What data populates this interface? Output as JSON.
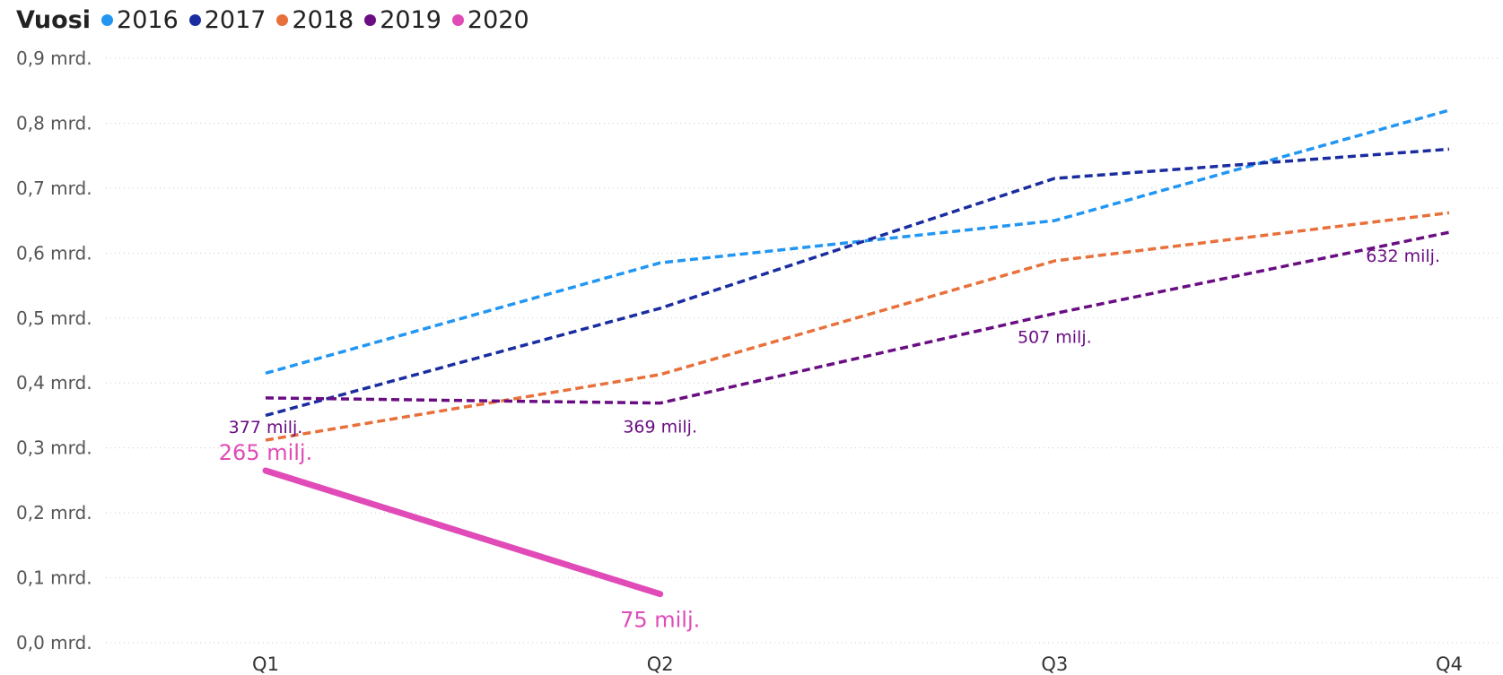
{
  "chart_data": {
    "type": "line",
    "legend_title": "Vuosi",
    "legend_position": "top-left",
    "categories": [
      "Q1",
      "Q2",
      "Q3",
      "Q4"
    ],
    "ylim": [
      0,
      0.9
    ],
    "y_ticks": [
      {
        "value": 0.0,
        "label": "0,0 mrd."
      },
      {
        "value": 0.1,
        "label": "0,1 mrd."
      },
      {
        "value": 0.2,
        "label": "0,2 mrd."
      },
      {
        "value": 0.3,
        "label": "0,3 mrd."
      },
      {
        "value": 0.4,
        "label": "0,4 mrd."
      },
      {
        "value": 0.5,
        "label": "0,5 mrd."
      },
      {
        "value": 0.6,
        "label": "0,6 mrd."
      },
      {
        "value": 0.7,
        "label": "0,7 mrd."
      },
      {
        "value": 0.8,
        "label": "0,8 mrd."
      },
      {
        "value": 0.9,
        "label": "0,9 mrd."
      }
    ],
    "grid": true,
    "series": [
      {
        "name": "2016",
        "color": "#2196F3",
        "style": "dashed",
        "values": [
          0.415,
          0.585,
          0.65,
          0.82
        ]
      },
      {
        "name": "2017",
        "color": "#1A2DA0",
        "style": "dashed",
        "values": [
          0.35,
          0.515,
          0.715,
          0.76
        ]
      },
      {
        "name": "2018",
        "color": "#E8703A",
        "style": "dashed",
        "values": [
          0.312,
          0.413,
          0.588,
          0.662
        ]
      },
      {
        "name": "2019",
        "color": "#6A0D83",
        "style": "dashed",
        "values": [
          0.377,
          0.369,
          0.507,
          0.632
        ],
        "data_labels": [
          "377 milj.",
          "369 milj.",
          "507 milj.",
          "632 milj."
        ]
      },
      {
        "name": "2020",
        "color": "#E04BB8",
        "style": "solid",
        "values": [
          0.265,
          0.075,
          null,
          null
        ],
        "data_labels": [
          "265 milj.",
          "75 milj.",
          null,
          null
        ]
      }
    ]
  }
}
